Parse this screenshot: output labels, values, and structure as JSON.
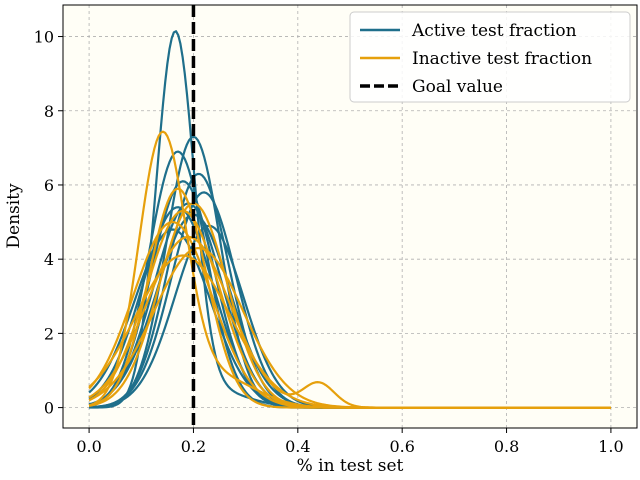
{
  "chart_data": {
    "type": "line",
    "xlabel": "% in test set",
    "ylabel": "Density",
    "xlim": [
      -0.05,
      1.05
    ],
    "ylim": [
      -0.55,
      10.85
    ],
    "xticks": [
      0.0,
      0.2,
      0.4,
      0.6,
      0.8,
      1.0
    ],
    "xtick_labels": [
      "0.0",
      "0.2",
      "0.4",
      "0.6",
      "0.8",
      "1.0"
    ],
    "yticks": [
      0,
      2,
      4,
      6,
      8,
      10
    ],
    "ytick_labels": [
      "0",
      "2",
      "4",
      "6",
      "8",
      "10"
    ],
    "grid": true,
    "legend_position": "top-right",
    "background_color": "#fffef6",
    "goal_value": 0.2,
    "legend": [
      {
        "label": "Active test fraction",
        "color": "#1f6f8b",
        "style": "solid"
      },
      {
        "label": "Inactive test fraction",
        "color": "#e6a00c",
        "style": "solid"
      },
      {
        "label": "Goal value",
        "color": "#000000",
        "style": "dashed"
      }
    ],
    "series": [
      {
        "group": "active",
        "color": "#1f6f8b",
        "components": [
          [
            10.0,
            0.165,
            0.036
          ],
          [
            0.4,
            0.25,
            0.06
          ]
        ]
      },
      {
        "group": "active",
        "color": "#1f6f8b",
        "components": [
          [
            7.3,
            0.2,
            0.052
          ]
        ]
      },
      {
        "group": "active",
        "color": "#1f6f8b",
        "components": [
          [
            6.9,
            0.17,
            0.055
          ]
        ]
      },
      {
        "group": "active",
        "color": "#1f6f8b",
        "components": [
          [
            6.3,
            0.21,
            0.058
          ]
        ]
      },
      {
        "group": "active",
        "color": "#1f6f8b",
        "components": [
          [
            6.1,
            0.18,
            0.06
          ]
        ]
      },
      {
        "group": "active",
        "color": "#1f6f8b",
        "components": [
          [
            5.8,
            0.22,
            0.062
          ]
        ]
      },
      {
        "group": "active",
        "color": "#1f6f8b",
        "components": [
          [
            5.5,
            0.19,
            0.065
          ]
        ]
      },
      {
        "group": "active",
        "color": "#1f6f8b",
        "components": [
          [
            5.4,
            0.17,
            0.068
          ]
        ]
      },
      {
        "group": "active",
        "color": "#1f6f8b",
        "components": [
          [
            5.2,
            0.2,
            0.07
          ]
        ]
      },
      {
        "group": "active",
        "color": "#1f6f8b",
        "components": [
          [
            4.9,
            0.23,
            0.066
          ]
        ]
      },
      {
        "group": "active",
        "color": "#1f6f8b",
        "components": [
          [
            4.8,
            0.16,
            0.072
          ]
        ]
      },
      {
        "group": "inactive",
        "color": "#e6a00c",
        "components": [
          [
            7.2,
            0.14,
            0.045
          ],
          [
            0.8,
            0.25,
            0.07
          ]
        ]
      },
      {
        "group": "inactive",
        "color": "#e6a00c",
        "components": [
          [
            5.9,
            0.17,
            0.055
          ]
        ]
      },
      {
        "group": "inactive",
        "color": "#e6a00c",
        "components": [
          [
            5.5,
            0.2,
            0.065
          ]
        ]
      },
      {
        "group": "inactive",
        "color": "#e6a00c",
        "components": [
          [
            5.3,
            0.18,
            0.07
          ]
        ]
      },
      {
        "group": "inactive",
        "color": "#e6a00c",
        "components": [
          [
            5.0,
            0.16,
            0.075
          ]
        ]
      },
      {
        "group": "inactive",
        "color": "#e6a00c",
        "components": [
          [
            4.6,
            0.19,
            0.08
          ],
          [
            0.65,
            0.44,
            0.03
          ]
        ]
      },
      {
        "group": "inactive",
        "color": "#e6a00c",
        "components": [
          [
            4.3,
            0.21,
            0.085
          ]
        ]
      },
      {
        "group": "inactive",
        "color": "#e6a00c",
        "components": [
          [
            4.1,
            0.18,
            0.09
          ]
        ]
      }
    ]
  }
}
